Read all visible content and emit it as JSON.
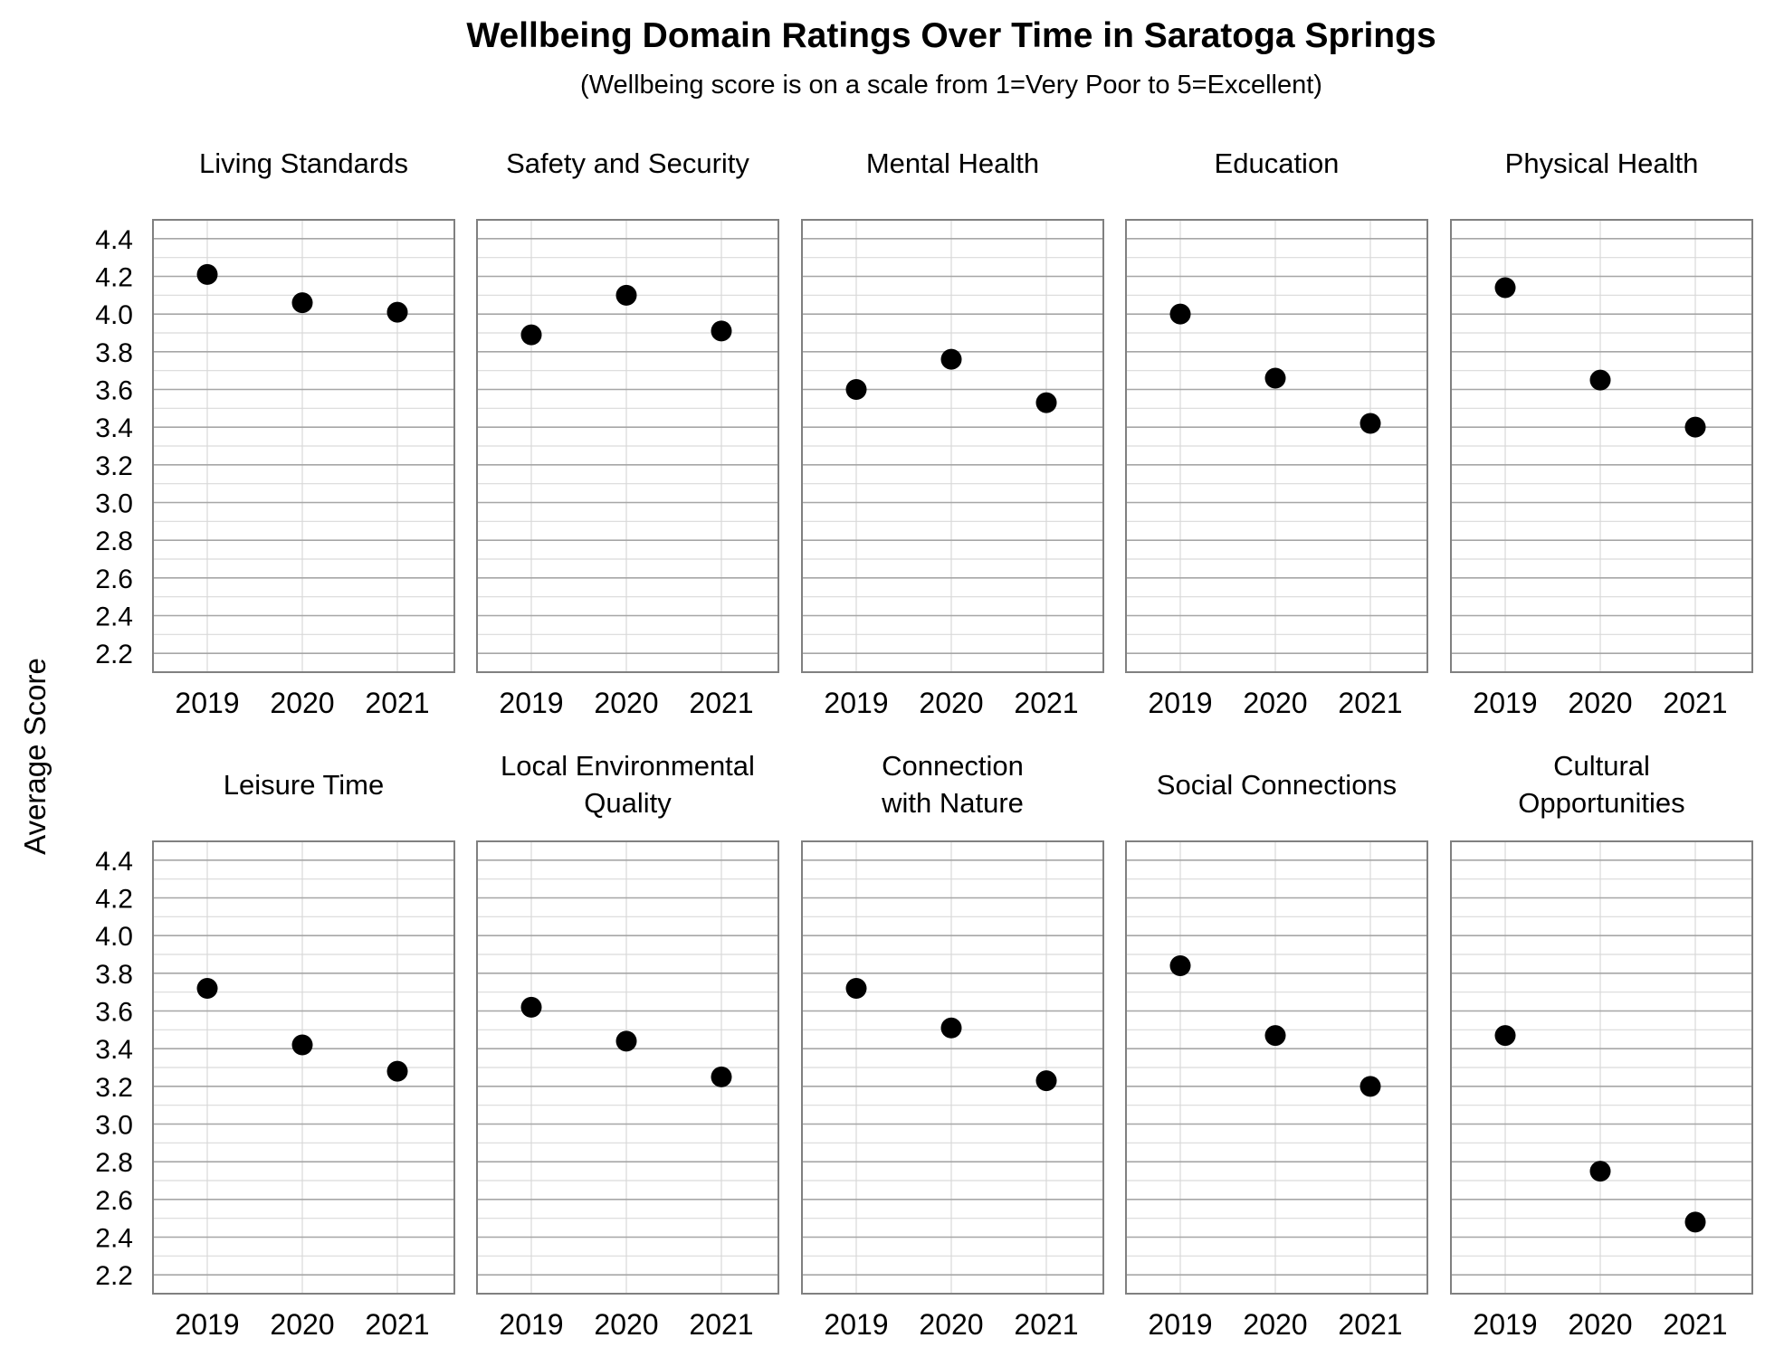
{
  "chart_data": {
    "type": "scatter",
    "title": "Wellbeing Domain Ratings Over Time in Saratoga Springs",
    "subtitle": "(Wellbeing score is on a scale from 1=Very Poor to 5=Excellent)",
    "ylabel": "Average Score",
    "ylim": [
      2.1,
      4.5
    ],
    "yticks": [
      "2.2",
      "2.4",
      "2.6",
      "2.8",
      "3.0",
      "3.2",
      "3.4",
      "3.6",
      "3.8",
      "4.0",
      "4.2",
      "4.4"
    ],
    "categories": [
      "2019",
      "2020",
      "2021"
    ],
    "grid": true,
    "panels": [
      {
        "title": [
          "Living Standards"
        ],
        "values": [
          4.21,
          4.06,
          4.01
        ]
      },
      {
        "title": [
          "Safety and Security"
        ],
        "values": [
          3.89,
          4.1,
          3.91
        ]
      },
      {
        "title": [
          "Mental Health"
        ],
        "values": [
          3.6,
          3.76,
          3.53
        ]
      },
      {
        "title": [
          "Education"
        ],
        "values": [
          4.0,
          3.66,
          3.42
        ]
      },
      {
        "title": [
          "Physical Health"
        ],
        "values": [
          4.14,
          3.65,
          3.4
        ]
      },
      {
        "title": [
          "Leisure Time"
        ],
        "values": [
          3.72,
          3.42,
          3.28
        ]
      },
      {
        "title": [
          "Local Environmental",
          "Quality"
        ],
        "values": [
          3.62,
          3.44,
          3.25
        ]
      },
      {
        "title": [
          "Connection",
          "with Nature"
        ],
        "values": [
          3.72,
          3.51,
          3.23
        ]
      },
      {
        "title": [
          "Social Connections"
        ],
        "values": [
          3.84,
          3.47,
          3.2
        ]
      },
      {
        "title": [
          "Cultural",
          "Opportunities"
        ],
        "values": [
          3.47,
          2.75,
          2.48
        ]
      }
    ],
    "point_color": "#000000",
    "grid_color_major": "#a6a6a6",
    "grid_color_minor": "#d9d9d9",
    "axis_color": "#808080"
  }
}
